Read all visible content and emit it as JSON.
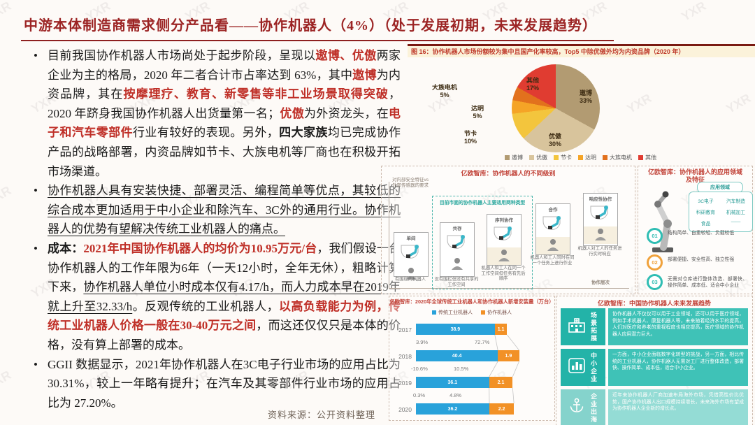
{
  "watermark": "YXR",
  "title": "中游本体制造商需求侧分产品看——协作机器人（4%）（处于发展初期，未来发展趋势）",
  "source_note": "资料来源：公开资料整理",
  "bullets": [
    {
      "segments": [
        {
          "t": "目前我国协作机器人市场尚处于起步阶段，呈现以",
          "s": "n"
        },
        {
          "t": "遨博、优傲",
          "s": "rb"
        },
        {
          "t": "两家企业为主的格局，2020 年二者合计市占率达到 63%，其中",
          "s": "n"
        },
        {
          "t": "遨博",
          "s": "rb"
        },
        {
          "t": "为内资品牌，其在",
          "s": "n"
        },
        {
          "t": "按摩理疗、教育、新零售等非工业场景取得突破",
          "s": "rb"
        },
        {
          "t": "，2020 年跻身我国协作机器人出货量第一名；",
          "s": "n"
        },
        {
          "t": "优傲",
          "s": "rb"
        },
        {
          "t": "为外资龙头，在",
          "s": "n"
        },
        {
          "t": "电子和汽车零部件",
          "s": "rb"
        },
        {
          "t": "行业有较好的表现。另外，",
          "s": "n"
        },
        {
          "t": "四大家族",
          "s": "b"
        },
        {
          "t": "均已完成协作产品的战略部署，内资品牌如节卡、大族电机等厂商也在积极开拓市场渠道。",
          "s": "n"
        }
      ]
    },
    {
      "segments": [
        {
          "t": "协作机器人具有安装快捷、部署灵活、编程简单等优点，其较低的综合成本更加适用于中小企业和除汽车、3C外的通用行业。协作机器人的优势有望解决传统工业机器人的痛点。",
          "s": "u"
        }
      ]
    },
    {
      "segments": [
        {
          "t": "成本：",
          "s": "b"
        },
        {
          "t": "2021年中国协作机器人的均价为10.95万元/台",
          "s": "rb"
        },
        {
          "t": "，我们假设一台协作机器人的工作年限为6年（一天12小时，全年无休），粗略计算下来，",
          "s": "n"
        },
        {
          "t": "协作机器人单位小时成本仅有4.17/h，而人力成本早在2019年就上升至32.33/h",
          "s": "u"
        },
        {
          "t": "。反观传统的工业机器人，",
          "s": "n"
        },
        {
          "t": "以高负载能力为例，传统工业机器人价格一般在30-40万元之间",
          "s": "rb"
        },
        {
          "t": "，而这还仅仅只是本体的价格，没有算上部署的成本。",
          "s": "n"
        }
      ]
    },
    {
      "segments": [
        {
          "t": "GGII 数据显示，2021年协作机器人在3C电子行业市场的应用占比为 30.31%，较上一年略有提升；在汽车及其零部件行业市场的应用占比为 27.20%。",
          "s": "n"
        }
      ]
    }
  ],
  "figure16": {
    "caption": "图 16：协作机器人市场份额较为集中且国产化率较高，Top5 中除优傲外均为内资品牌（2020 年）",
    "chart_data": {
      "type": "pie",
      "slices": [
        {
          "label": "遨博",
          "value": 33,
          "color": "#b29b72"
        },
        {
          "label": "优傲",
          "value": 30,
          "color": "#d8c49c"
        },
        {
          "label": "节卡",
          "value": 10,
          "color": "#f3c53d"
        },
        {
          "label": "达明",
          "value": 5,
          "color": "#f5a426"
        },
        {
          "label": "大族电机",
          "value": 5,
          "color": "#e2711d"
        },
        {
          "label": "其他",
          "value": 17,
          "color": "#e03c31"
        }
      ],
      "legend_position": "bottom"
    }
  },
  "levels_panel": {
    "title": "亿欧智库：协作机器人的不同级别",
    "y_axis": "对内部安全特征vs\n外部传感器的要求",
    "x_axis": "协作层次",
    "group_note": "目前市面的协作机器人主要适用两种类型",
    "items": [
      {
        "label": "单间",
        "caption": "有围栏的机器人"
      },
      {
        "label": "共存",
        "caption": "没有围栏但没有共享的工作空间"
      },
      {
        "label": "序列协作",
        "caption": "机器人和工人在同一个工作空间但任务有先后顺序"
      },
      {
        "label": "合作",
        "caption": "机器人和工人同时在同一个任务上进行作业"
      },
      {
        "label": "响应性协作",
        "caption": "机器人对工人的任务进行实时响应"
      }
    ]
  },
  "app_panel": {
    "title": "亿欧智库：协作机器人的应用领域及特征",
    "fields_header": "应用领域",
    "fields": [
      "3C电子",
      "汽车制造",
      "科研教育",
      "机械加工",
      "食品",
      "——"
    ],
    "points": [
      {
        "num": "01",
        "color": "#2fbdb3",
        "text": "结构简单、自重较轻、负载较低"
      },
      {
        "num": "02",
        "color": "#f0a23c",
        "text": "部署便捷、安全性高、独立性强"
      },
      {
        "num": "03",
        "color": "#2fbdb3",
        "text": "无需对仓库进行整体改造、部署快、操作简单、成本低、适合中小企业"
      }
    ]
  },
  "install_chart": {
    "chart_data": {
      "type": "bar",
      "orientation": "horizontal-stacked",
      "title": "亿欧智库：2020年全球传统工业机器人和协作机器人新增安装量（万台）",
      "categories": [
        "2017",
        "2018",
        "2019",
        "2020"
      ],
      "series": [
        {
          "name": "传统工业机器人",
          "color": "#29a2da",
          "values": [
            38.9,
            40.4,
            36.1,
            36.2
          ]
        },
        {
          "name": "协作机器人",
          "color": "#f29126",
          "values": [
            1.1,
            1.9,
            2.1,
            2.2
          ]
        }
      ],
      "growth_labels": [
        {
          "traditional": "3.9%",
          "cobot": "72.7%"
        },
        {
          "traditional": "-10.6%",
          "cobot": "10.5%"
        },
        {
          "traditional": "0.3%",
          "cobot": "4.8%"
        }
      ]
    }
  },
  "trends_panel": {
    "title": "亿欧智库：中国协作机器人未来发展趋势",
    "rows": [
      {
        "label": "场景拓展",
        "icon": "hospital-icon",
        "faded": false,
        "text": "协作机器人不仅仅可以用于工业领域，还可以用于医疗领域，例如手术机器人、康复机器人等，未来随着经济水平的提高，人们对医疗和养老的重视程度也相应提高，医疗领域的协作机器人应用潜力巨大。"
      },
      {
        "label": "中小企业",
        "icon": "chart-icon",
        "faded": false,
        "text": "一方面，中小企业面临数字化转型的挑战，另一方面，相比传统的工业机器人，协作机器人无需对工厂进行整体改造，部署快、操作简单、成本低，适合中小企业。"
      },
      {
        "label": "企业出海",
        "icon": "anchor-icon",
        "faded": true,
        "text": "近年来协作机器人厂商加速布局海外市场，凭借高性价比优势，国产协作机器人出口规模持续增长，未来海外市场有望成为协作机器人企业新的增长点。"
      }
    ]
  }
}
